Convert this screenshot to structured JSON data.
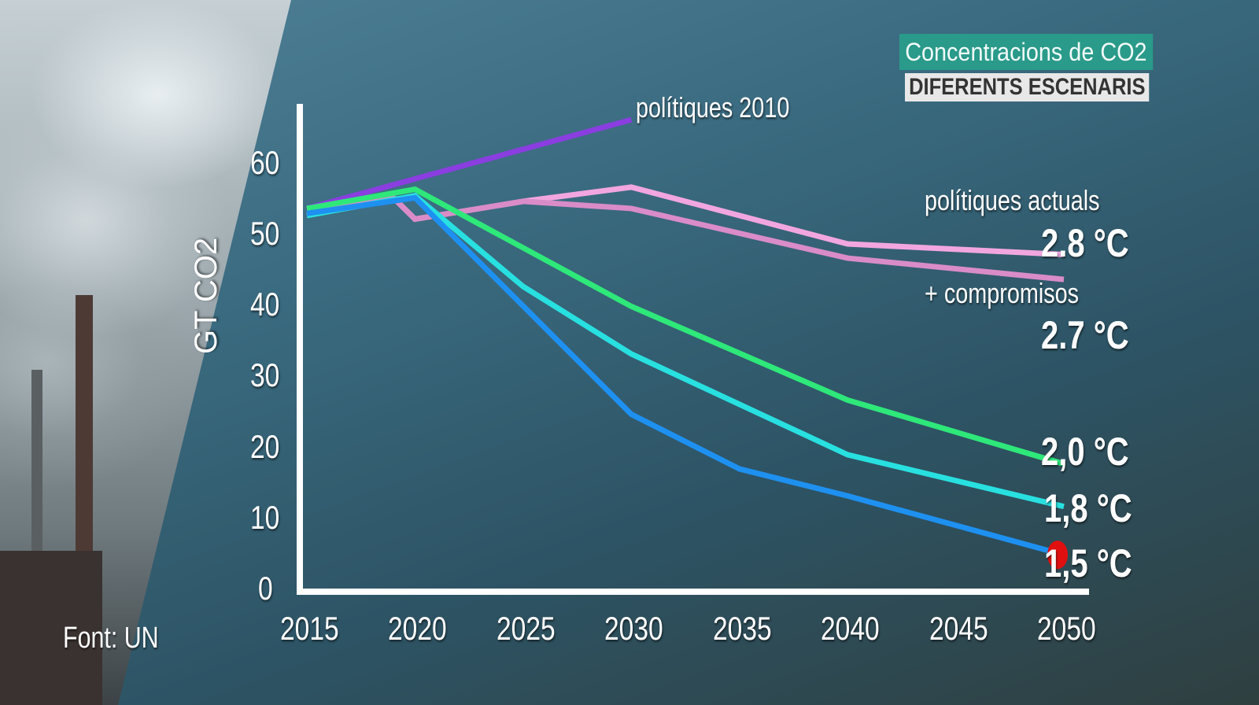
{
  "header": {
    "title": "Concentracions de CO2",
    "subtitle": "DIFERENTS ESCENARIS"
  },
  "source": "Font: UN",
  "chart_data": {
    "type": "line",
    "title": "Concentracions de CO2",
    "subtitle": "DIFERENTS ESCENARIS",
    "xlabel": "",
    "ylabel": "GT CO2",
    "xlim": [
      2015,
      2050
    ],
    "ylim": [
      0,
      65
    ],
    "xticks": [
      "2015",
      "2020",
      "2025",
      "2030",
      "2035",
      "2040",
      "2045",
      "2050"
    ],
    "yticks": [
      "0",
      "10",
      "20",
      "30",
      "40",
      "50",
      "60"
    ],
    "grid": false,
    "series": [
      {
        "name": "polítiques 2010",
        "color": "#8a3ee0",
        "x": [
          2015,
          2030
        ],
        "y": [
          54,
          66.5
        ]
      },
      {
        "name": "polítiques actuals",
        "end_label": "2.8 °C",
        "color": "#f2a6e0",
        "x": [
          2015,
          2019,
          2020,
          2025,
          2030,
          2040,
          2050
        ],
        "y": [
          54,
          55.5,
          52.5,
          55,
          57,
          49,
          47.5
        ]
      },
      {
        "name": "+ compromisos",
        "end_label": "2.7 °C",
        "color": "#d98cc8",
        "x": [
          2015,
          2019,
          2020,
          2025,
          2030,
          2040,
          2050
        ],
        "y": [
          54,
          55.5,
          52.5,
          55,
          54,
          47,
          44
        ]
      },
      {
        "end_label": "2,0 °C",
        "color": "#2ee87a",
        "x": [
          2015,
          2020,
          2030,
          2040,
          2050
        ],
        "y": [
          54,
          56.7,
          40.2,
          27,
          18
        ]
      },
      {
        "end_label": "1,8 °C",
        "color": "#28e0e0",
        "x": [
          2015,
          2020,
          2025,
          2030,
          2040,
          2050
        ],
        "y": [
          53,
          55.8,
          43,
          33.5,
          19.3,
          12
        ]
      },
      {
        "end_label": "1,5 °C",
        "color": "#1e90f0",
        "x": [
          2015,
          2020,
          2030,
          2035,
          2040,
          2050
        ],
        "y": [
          53.3,
          55.5,
          25,
          17.3,
          13.5,
          5.2
        ]
      }
    ],
    "marker": {
      "x": 2050,
      "y": 5.2,
      "color": "#e01010"
    }
  }
}
